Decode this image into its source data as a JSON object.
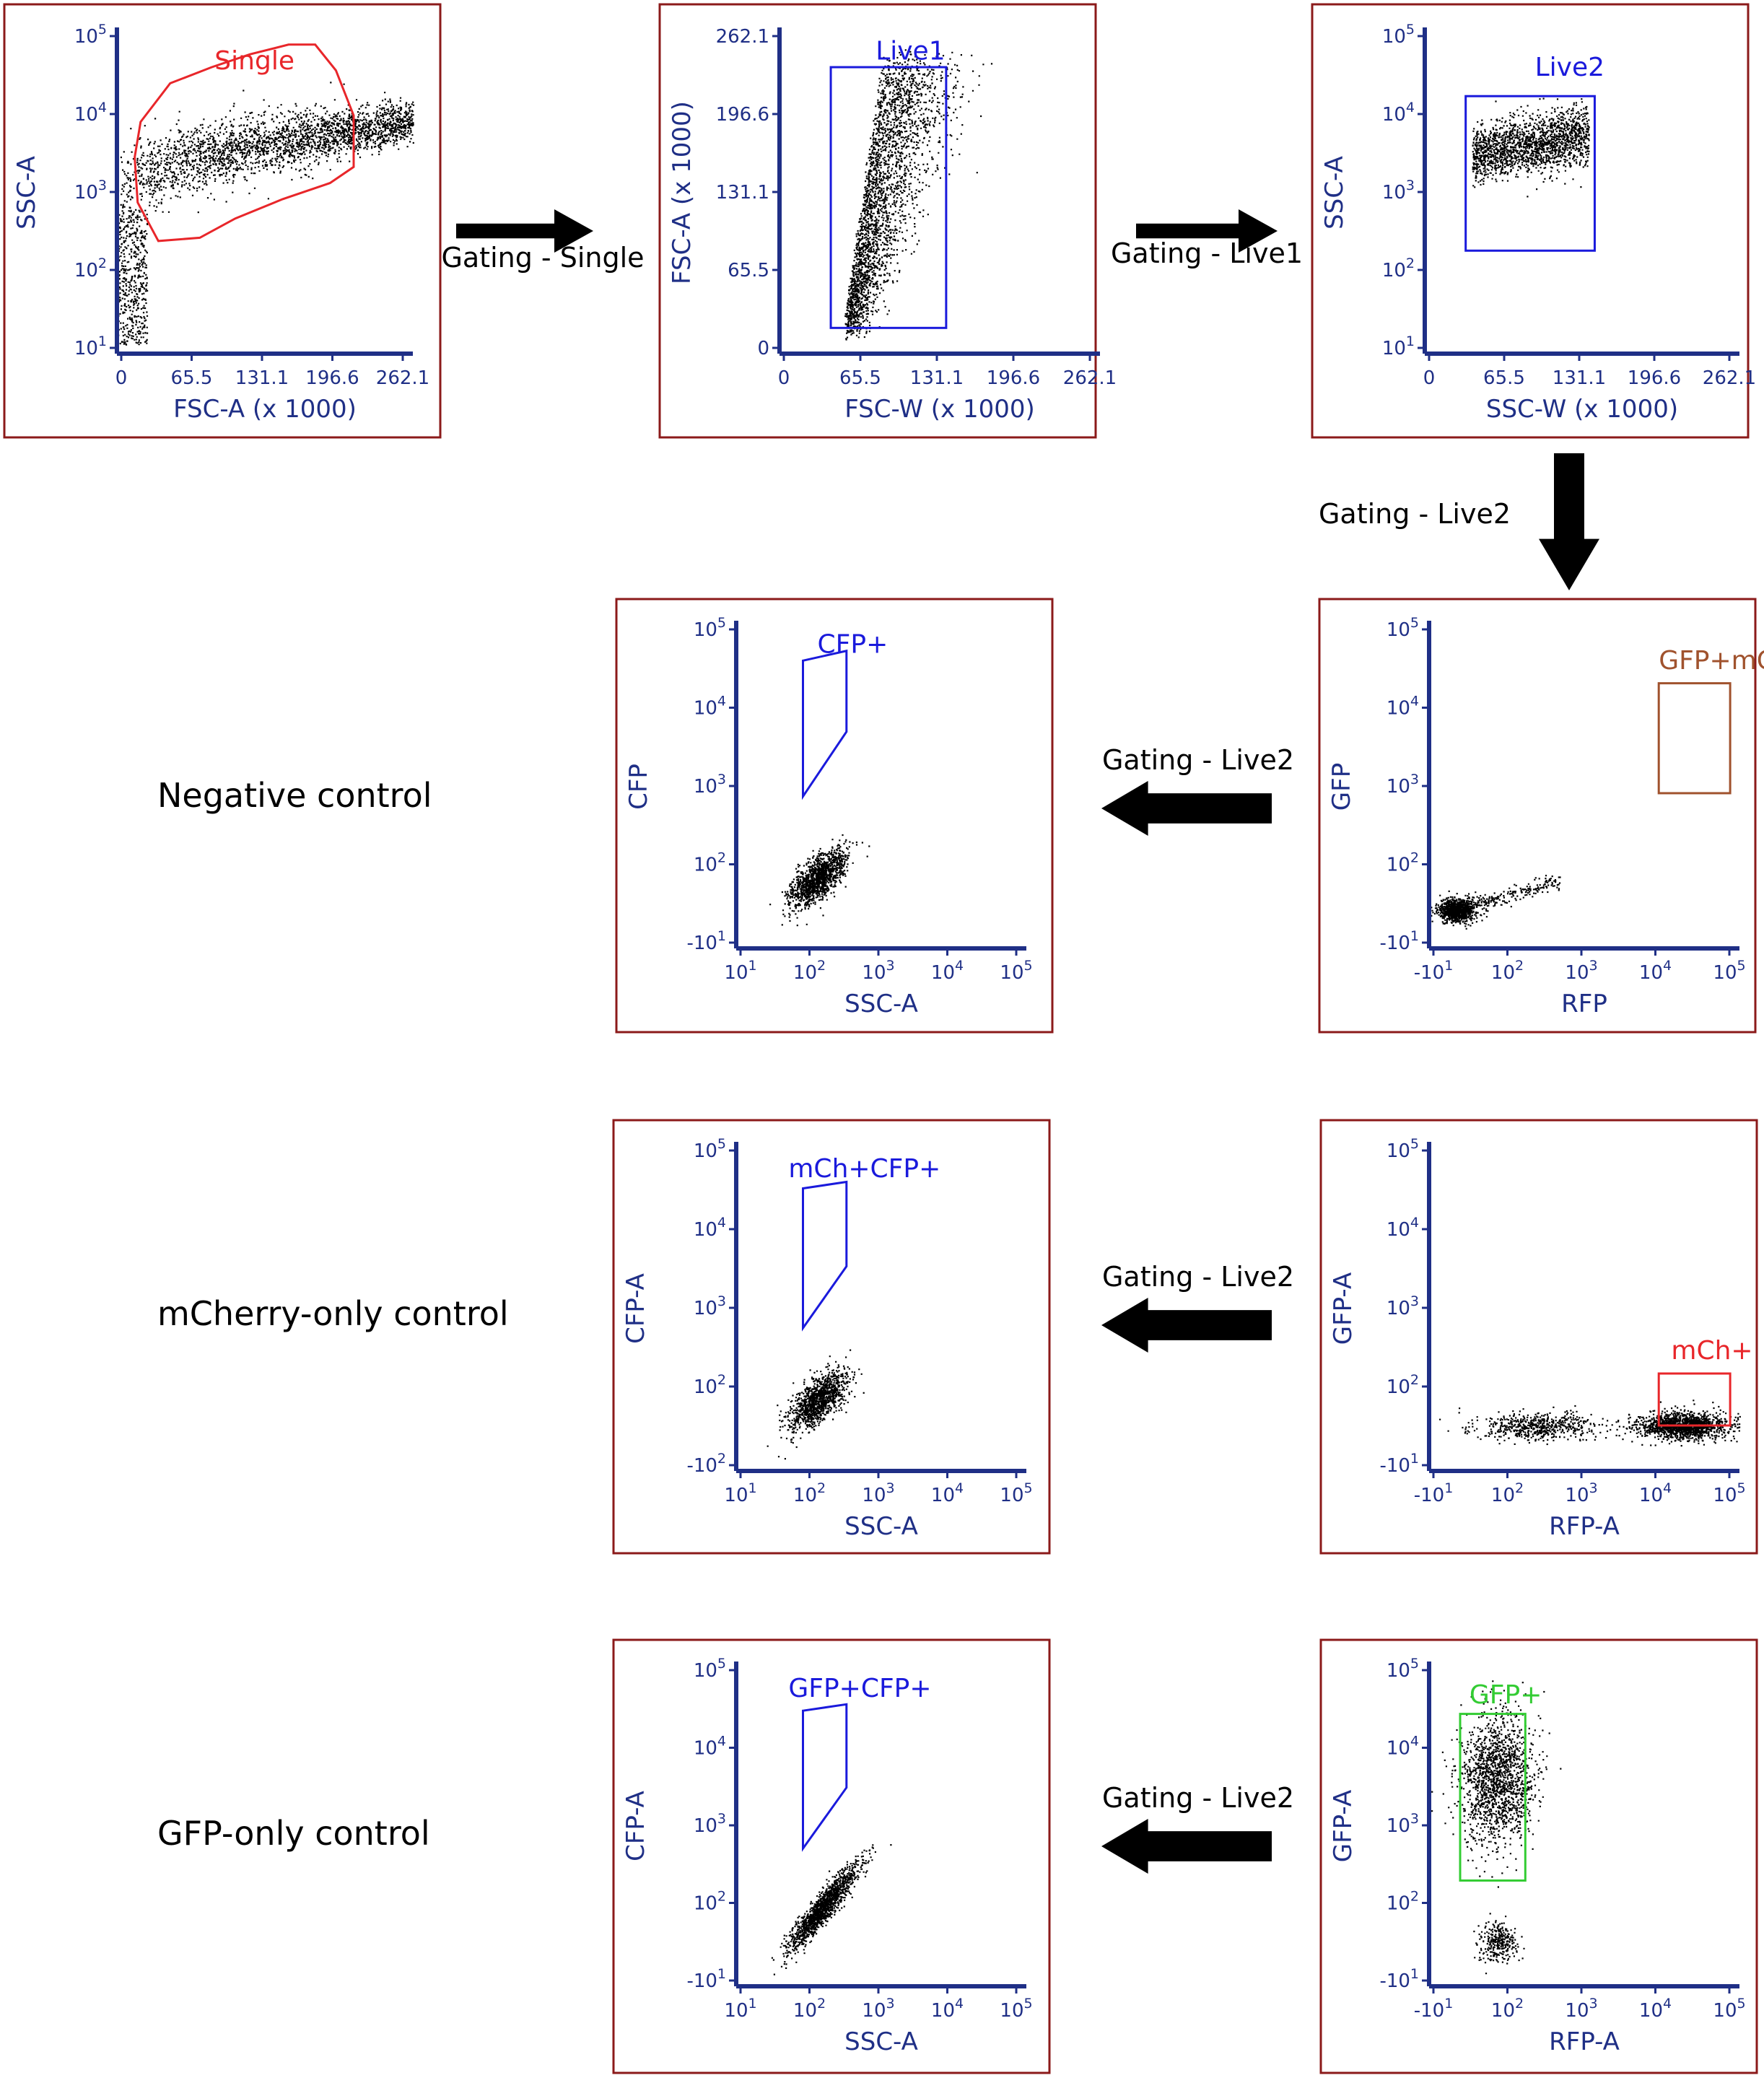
{
  "panels": [
    {
      "id": "p1",
      "x_label": "FSC-A (x 1000)",
      "y_label": "SSC-A",
      "x_ticks": [
        "0",
        "65.5",
        "131.1",
        "196.6",
        "262.1"
      ],
      "y_ticks": [
        "10^5",
        "10^4",
        "10^3",
        "10^2",
        "10^1"
      ],
      "gate": {
        "label": "Single",
        "color": "#e8262a"
      }
    },
    {
      "id": "p2",
      "x_label": "FSC-W (x 1000)",
      "y_label": "FSC-A (x 1000)",
      "x_ticks": [
        "0",
        "65.5",
        "131.1",
        "196.6",
        "262.1"
      ],
      "y_ticks": [
        "262.1",
        "196.6",
        "131.1",
        "65.5",
        "0"
      ],
      "gate": {
        "label": "Live1",
        "color": "#1a1adc"
      }
    },
    {
      "id": "p3",
      "x_label": "SSC-W (x 1000)",
      "y_label": "SSC-A",
      "x_ticks": [
        "0",
        "65.5",
        "131.1",
        "196.6",
        "262.1"
      ],
      "y_ticks": [
        "10^5",
        "10^4",
        "10^3",
        "10^2",
        "10^1"
      ],
      "gate": {
        "label": "Live2",
        "color": "#1a1adc"
      }
    },
    {
      "id": "p4",
      "x_label": "RFP",
      "y_label": "GFP",
      "x_ticks": [
        "-10^1",
        "10^2",
        "10^3",
        "10^4",
        "10^5"
      ],
      "y_ticks": [
        "10^5",
        "10^4",
        "10^3",
        "10^2",
        "-10^1"
      ],
      "gate": {
        "label": "GFP+mCh+",
        "color": "#a0522d"
      }
    },
    {
      "id": "p5",
      "x_label": "SSC-A",
      "y_label": "CFP",
      "x_ticks": [
        "10^1",
        "10^2",
        "10^3",
        "10^4",
        "10^5"
      ],
      "y_ticks": [
        "10^5",
        "10^4",
        "10^3",
        "10^2",
        "-10^1"
      ],
      "gate": {
        "label": "CFP+",
        "color": "#1a1adc"
      }
    },
    {
      "id": "p6",
      "x_label": "RFP-A",
      "y_label": "GFP-A",
      "x_ticks": [
        "-10^1",
        "10^2",
        "10^3",
        "10^4",
        "10^5"
      ],
      "y_ticks": [
        "10^5",
        "10^4",
        "10^3",
        "10^2",
        "-10^1"
      ],
      "gate": {
        "label": "mCh+",
        "color": "#e8262a"
      }
    },
    {
      "id": "p7",
      "x_label": "SSC-A",
      "y_label": "CFP-A",
      "x_ticks": [
        "10^1",
        "10^2",
        "10^3",
        "10^4",
        "10^5"
      ],
      "y_ticks": [
        "10^5",
        "10^4",
        "10^3",
        "10^2",
        "-10^2"
      ],
      "gate": {
        "label": "mCh+CFP+",
        "color": "#1a1adc"
      }
    },
    {
      "id": "p8",
      "x_label": "RFP-A",
      "y_label": "GFP-A",
      "x_ticks": [
        "-10^1",
        "10^2",
        "10^3",
        "10^4",
        "10^5"
      ],
      "y_ticks": [
        "10^5",
        "10^4",
        "10^3",
        "10^2",
        "-10^1"
      ],
      "gate": {
        "label": "GFP+",
        "color": "#33cc33"
      }
    },
    {
      "id": "p9",
      "x_label": "SSC-A",
      "y_label": "CFP-A",
      "x_ticks": [
        "10^1",
        "10^2",
        "10^3",
        "10^4",
        "10^5"
      ],
      "y_ticks": [
        "10^5",
        "10^4",
        "10^3",
        "10^2",
        "-10^1"
      ],
      "gate": {
        "label": "GFP+CFP+",
        "color": "#1a1adc"
      }
    }
  ],
  "arrows": [
    {
      "id": "a1",
      "label": "Gating - Single"
    },
    {
      "id": "a2",
      "label": "Gating - Live1"
    },
    {
      "id": "a3",
      "label": "Gating - Live2"
    },
    {
      "id": "a4",
      "label": "Gating - Live2"
    },
    {
      "id": "a5",
      "label": "Gating - Live2"
    },
    {
      "id": "a6",
      "label": "Gating - Live2"
    }
  ],
  "row_labels": [
    "Negative control",
    "mCherry-only control",
    "GFP-only control"
  ],
  "colors": {
    "axis": "#1f2f86",
    "frame": "#8b1a1a",
    "dots": "#000000"
  }
}
